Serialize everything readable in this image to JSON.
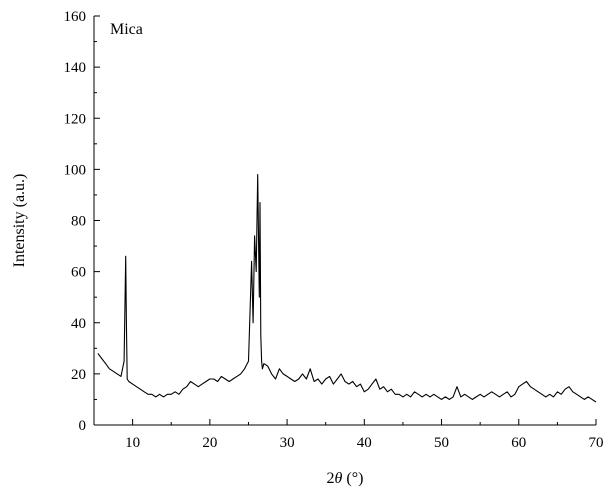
{
  "chart_data": {
    "type": "line",
    "title": "",
    "annotation": "Mica",
    "xlabel": "2θ (°)",
    "xlabel_parts": {
      "prefix": "2",
      "theta": "θ",
      "unit": " (°)"
    },
    "ylabel": "Intensity (a.u.)",
    "xlim": [
      5,
      70
    ],
    "ylim": [
      0,
      160
    ],
    "x_ticks": [
      10,
      20,
      30,
      40,
      50,
      60,
      70
    ],
    "y_ticks": [
      0,
      20,
      40,
      60,
      80,
      100,
      120,
      140,
      160
    ],
    "x_tick_labels": [
      "10",
      "20",
      "30",
      "40",
      "50",
      "60",
      "70"
    ],
    "y_tick_labels": [
      "0",
      "20",
      "40",
      "60",
      "80",
      "100",
      "120",
      "140",
      "160"
    ],
    "grid": false,
    "legend": "none",
    "line_color": "#000000",
    "series": [
      {
        "x": [
          5.5,
          6.0,
          6.5,
          7.0,
          7.5,
          8.0,
          8.5,
          8.9,
          9.1,
          9.2,
          9.3,
          9.5,
          10.0,
          10.5,
          11.0,
          11.5,
          12.0,
          12.5,
          13.0,
          13.5,
          14.0,
          14.5,
          15.0,
          15.5,
          16.0,
          16.5,
          17.0,
          17.5,
          18.0,
          18.5,
          19.0,
          19.5,
          20.0,
          20.5,
          21.0,
          21.5,
          22.0,
          22.5,
          23.0,
          23.5,
          24.0,
          24.5,
          25.0,
          25.4,
          25.6,
          25.8,
          26.0,
          26.2,
          26.4,
          26.5,
          26.6,
          26.7,
          26.8,
          27.0,
          27.5,
          28.0,
          28.5,
          29.0,
          29.5,
          30.0,
          30.5,
          31.0,
          31.5,
          32.0,
          32.5,
          33.0,
          33.5,
          34.0,
          34.5,
          35.0,
          35.5,
          36.0,
          36.5,
          37.0,
          37.5,
          38.0,
          38.5,
          39.0,
          39.5,
          40.0,
          40.5,
          41.0,
          41.5,
          42.0,
          42.5,
          43.0,
          43.5,
          44.0,
          44.5,
          45.0,
          45.5,
          46.0,
          46.5,
          47.0,
          47.5,
          48.0,
          48.5,
          49.0,
          49.5,
          50.0,
          50.5,
          51.0,
          51.5,
          52.0,
          52.5,
          53.0,
          53.5,
          54.0,
          54.5,
          55.0,
          55.5,
          56.0,
          56.5,
          57.0,
          57.5,
          58.0,
          58.5,
          59.0,
          59.5,
          60.0,
          60.5,
          61.0,
          61.5,
          62.0,
          62.5,
          63.0,
          63.5,
          64.0,
          64.5,
          65.0,
          65.5,
          66.0,
          66.5,
          67.0,
          67.5,
          68.0,
          68.5,
          69.0,
          69.5,
          70.0
        ],
        "y": [
          28,
          26,
          24,
          22,
          21,
          20,
          19,
          25,
          66,
          40,
          18,
          17,
          16,
          15,
          14,
          13,
          12,
          12,
          11,
          12,
          11,
          12,
          12,
          13,
          12,
          14,
          15,
          17,
          16,
          15,
          16,
          17,
          18,
          18,
          17,
          19,
          18,
          17,
          18,
          19,
          20,
          22,
          25,
          64,
          40,
          74,
          60,
          98,
          50,
          87,
          35,
          25,
          22,
          24,
          23,
          20,
          18,
          22,
          20,
          19,
          18,
          17,
          18,
          20,
          18,
          22,
          17,
          18,
          16,
          18,
          19,
          16,
          18,
          20,
          17,
          16,
          17,
          15,
          16,
          13,
          14,
          16,
          18,
          14,
          15,
          13,
          14,
          12,
          12,
          11,
          12,
          11,
          13,
          12,
          11,
          12,
          11,
          12,
          11,
          10,
          11,
          10,
          11,
          15,
          11,
          12,
          11,
          10,
          11,
          12,
          11,
          12,
          13,
          12,
          11,
          12,
          13,
          11,
          12,
          15,
          16,
          17,
          15,
          14,
          13,
          12,
          11,
          12,
          11,
          13,
          12,
          14,
          15,
          13,
          12,
          11,
          10,
          11,
          10,
          9
        ]
      }
    ]
  }
}
